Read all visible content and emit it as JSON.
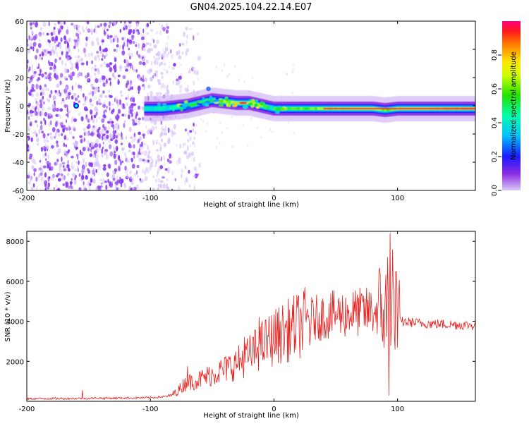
{
  "title": "GN04.2025.104.22.14.E07",
  "colors": {
    "line": "#e8201e",
    "ink": "#000000",
    "spectrogram_noise": "#8a3cf0",
    "spectrogram_faint": "#d7c3f8"
  },
  "chart_data": [
    {
      "type": "heatmap",
      "name": "spectrogram",
      "xlabel": "Height of straight line (km)",
      "ylabel": "Frequency (Hz)",
      "xlim": [
        -200,
        163
      ],
      "ylim": [
        -60,
        60
      ],
      "x_ticks": [
        -200,
        -100,
        0,
        100
      ],
      "y_ticks": [
        -60,
        -40,
        -20,
        0,
        20,
        40,
        60
      ],
      "colorbar": {
        "label": "Normalized spectral amplitude",
        "range": [
          0,
          1
        ],
        "ticks": [
          0.0,
          0.2,
          0.4,
          0.6,
          0.8
        ],
        "tick_labels": [
          "0.0",
          "0.2",
          "0.4",
          "0.6",
          "0.8"
        ],
        "colormap": "rainbow"
      },
      "carrier_track": {
        "x": [
          -105,
          -90,
          -80,
          -70,
          -60,
          -50,
          -40,
          -30,
          -20,
          -10,
          0,
          20,
          40,
          60,
          80,
          90,
          100,
          120,
          140,
          163
        ],
        "y": [
          -2,
          -2,
          -1,
          0,
          2,
          4,
          3,
          2,
          2,
          0,
          -2,
          -2,
          -2,
          -2,
          -2,
          -3,
          -2,
          -2,
          -2,
          -2
        ],
        "amplitude": [
          0.35,
          0.4,
          0.45,
          0.5,
          0.55,
          0.6,
          0.65,
          0.7,
          0.75,
          0.6,
          0.55,
          0.6,
          0.65,
          0.7,
          0.75,
          0.6,
          0.7,
          0.75,
          0.85,
          0.9
        ]
      },
      "noise_region_x": [
        -200,
        -85
      ]
    },
    {
      "type": "line",
      "name": "snr",
      "xlabel": "Height of straight line (km)",
      "ylabel": "SNR (10 * v/v)",
      "xlim": [
        -200,
        163
      ],
      "ylim": [
        0,
        8500
      ],
      "x_ticks": [
        -200,
        -100,
        0,
        100
      ],
      "y_ticks": [
        2000,
        4000,
        6000,
        8000
      ],
      "envelope": {
        "x": [
          -200,
          -150,
          -100,
          -85,
          -78,
          -72,
          -60,
          -50,
          -40,
          -30,
          -20,
          -10,
          0,
          10,
          20,
          30,
          40,
          50,
          60,
          70,
          80,
          88,
          92,
          96,
          100,
          110,
          120,
          140,
          163
        ],
        "y": [
          130,
          150,
          180,
          250,
          500,
          900,
          1100,
          1350,
          1600,
          1900,
          2300,
          2800,
          3200,
          3500,
          3800,
          4100,
          4250,
          4350,
          4400,
          4450,
          4500,
          4500,
          4500,
          4400,
          4000,
          3950,
          3900,
          3850,
          3800
        ]
      },
      "spikes": [
        {
          "x": -155,
          "y": 550
        },
        {
          "x": -70,
          "y": 1750
        },
        {
          "x": -60,
          "y": 1500
        },
        {
          "x": -24,
          "y": 3200
        },
        {
          "x": -12,
          "y": 4200
        },
        {
          "x": 5,
          "y": 4000
        },
        {
          "x": 90,
          "y": 5400
        },
        {
          "x": 92,
          "y": 7200
        },
        {
          "x": 93,
          "y": 300
        },
        {
          "x": 94,
          "y": 8400
        },
        {
          "x": 96,
          "y": 7600
        },
        {
          "x": 98,
          "y": 2600
        },
        {
          "x": 99,
          "y": 6500
        },
        {
          "x": 101,
          "y": 5400
        }
      ]
    }
  ]
}
